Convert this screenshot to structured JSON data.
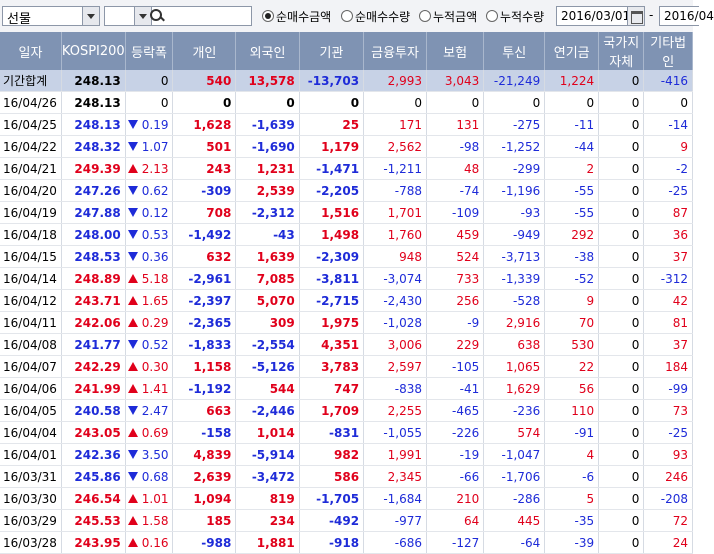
{
  "toolbar": {
    "market_select": "선물",
    "code_input": "",
    "radios": [
      {
        "label": "순매수금액",
        "selected": true
      },
      {
        "label": "순매수수량",
        "selected": false
      },
      {
        "label": "누적금액",
        "selected": false
      },
      {
        "label": "누적수량",
        "selected": false
      }
    ],
    "date_from": "2016/03/01",
    "date_sep": "-",
    "date_to": "2016/04"
  },
  "columns": [
    "일자",
    "KOSPI200",
    "등락폭",
    "개인",
    "외국인",
    "기관",
    "금융투자",
    "보험",
    "투신",
    "연기금",
    "국가지자체",
    "기타법인"
  ],
  "colors": {
    "up": "#e0001b",
    "down": "#1e2bd8",
    "header_bg": "#7f93b3",
    "total_bg": "#c7d2e6"
  },
  "rows": [
    {
      "date": "기간합계",
      "kospi": "248.13",
      "dir": "",
      "chg": "0",
      "vals": [
        "540",
        "13,578",
        "-13,703",
        "2,993",
        "3,043",
        "-21,249",
        "1,224",
        "0",
        "-416"
      ],
      "total": true
    },
    {
      "date": "16/04/26",
      "kospi": "248.13",
      "dir": "",
      "chg": "0",
      "vals": [
        "0",
        "0",
        "0",
        "0",
        "0",
        "0",
        "0",
        "0",
        "0"
      ]
    },
    {
      "date": "16/04/25",
      "kospi": "248.13",
      "dir": "dn",
      "chg": "0.19",
      "vals": [
        "1,628",
        "-1,639",
        "25",
        "171",
        "131",
        "-275",
        "-11",
        "0",
        "-14"
      ]
    },
    {
      "date": "16/04/22",
      "kospi": "248.32",
      "dir": "dn",
      "chg": "1.07",
      "vals": [
        "501",
        "-1,690",
        "1,179",
        "2,562",
        "-98",
        "-1,252",
        "-44",
        "0",
        "9"
      ]
    },
    {
      "date": "16/04/21",
      "kospi": "249.39",
      "dir": "up",
      "chg": "2.13",
      "vals": [
        "243",
        "1,231",
        "-1,471",
        "-1,211",
        "48",
        "-299",
        "2",
        "0",
        "-2"
      ]
    },
    {
      "date": "16/04/20",
      "kospi": "247.26",
      "dir": "dn",
      "chg": "0.62",
      "vals": [
        "-309",
        "2,539",
        "-2,205",
        "-788",
        "-74",
        "-1,196",
        "-55",
        "0",
        "-25"
      ]
    },
    {
      "date": "16/04/19",
      "kospi": "247.88",
      "dir": "dn",
      "chg": "0.12",
      "vals": [
        "708",
        "-2,312",
        "1,516",
        "1,701",
        "-109",
        "-93",
        "-55",
        "0",
        "87"
      ]
    },
    {
      "date": "16/04/18",
      "kospi": "248.00",
      "dir": "dn",
      "chg": "0.53",
      "vals": [
        "-1,492",
        "-43",
        "1,498",
        "1,760",
        "459",
        "-949",
        "292",
        "0",
        "36"
      ]
    },
    {
      "date": "16/04/15",
      "kospi": "248.53",
      "dir": "dn",
      "chg": "0.36",
      "vals": [
        "632",
        "1,639",
        "-2,309",
        "948",
        "524",
        "-3,713",
        "-38",
        "0",
        "37"
      ]
    },
    {
      "date": "16/04/14",
      "kospi": "248.89",
      "dir": "up",
      "chg": "5.18",
      "vals": [
        "-2,961",
        "7,085",
        "-3,811",
        "-3,074",
        "733",
        "-1,339",
        "-52",
        "0",
        "-312"
      ]
    },
    {
      "date": "16/04/12",
      "kospi": "243.71",
      "dir": "up",
      "chg": "1.65",
      "vals": [
        "-2,397",
        "5,070",
        "-2,715",
        "-2,430",
        "256",
        "-528",
        "9",
        "0",
        "42"
      ]
    },
    {
      "date": "16/04/11",
      "kospi": "242.06",
      "dir": "up",
      "chg": "0.29",
      "vals": [
        "-2,365",
        "309",
        "1,975",
        "-1,028",
        "-9",
        "2,916",
        "70",
        "0",
        "81"
      ]
    },
    {
      "date": "16/04/08",
      "kospi": "241.77",
      "dir": "dn",
      "chg": "0.52",
      "vals": [
        "-1,833",
        "-2,554",
        "4,351",
        "3,006",
        "229",
        "638",
        "530",
        "0",
        "37"
      ]
    },
    {
      "date": "16/04/07",
      "kospi": "242.29",
      "dir": "up",
      "chg": "0.30",
      "vals": [
        "1,158",
        "-5,126",
        "3,783",
        "2,597",
        "-105",
        "1,065",
        "22",
        "0",
        "184"
      ]
    },
    {
      "date": "16/04/06",
      "kospi": "241.99",
      "dir": "up",
      "chg": "1.41",
      "vals": [
        "-1,192",
        "544",
        "747",
        "-838",
        "-41",
        "1,629",
        "56",
        "0",
        "-99"
      ]
    },
    {
      "date": "16/04/05",
      "kospi": "240.58",
      "dir": "dn",
      "chg": "2.47",
      "vals": [
        "663",
        "-2,446",
        "1,709",
        "2,255",
        "-465",
        "-236",
        "110",
        "0",
        "73"
      ]
    },
    {
      "date": "16/04/04",
      "kospi": "243.05",
      "dir": "up",
      "chg": "0.69",
      "vals": [
        "-158",
        "1,014",
        "-831",
        "-1,055",
        "-226",
        "574",
        "-91",
        "0",
        "-25"
      ]
    },
    {
      "date": "16/04/01",
      "kospi": "242.36",
      "dir": "dn",
      "chg": "3.50",
      "vals": [
        "4,839",
        "-5,914",
        "982",
        "1,991",
        "-19",
        "-1,047",
        "4",
        "0",
        "93"
      ]
    },
    {
      "date": "16/03/31",
      "kospi": "245.86",
      "dir": "dn",
      "chg": "0.68",
      "vals": [
        "2,639",
        "-3,472",
        "586",
        "2,345",
        "-66",
        "-1,706",
        "-6",
        "0",
        "246"
      ]
    },
    {
      "date": "16/03/30",
      "kospi": "246.54",
      "dir": "up",
      "chg": "1.01",
      "vals": [
        "1,094",
        "819",
        "-1,705",
        "-1,684",
        "210",
        "-286",
        "5",
        "0",
        "-208"
      ]
    },
    {
      "date": "16/03/29",
      "kospi": "245.53",
      "dir": "up",
      "chg": "1.58",
      "vals": [
        "185",
        "234",
        "-492",
        "-977",
        "64",
        "445",
        "-35",
        "0",
        "72"
      ]
    },
    {
      "date": "16/03/28",
      "kospi": "243.95",
      "dir": "up",
      "chg": "0.16",
      "vals": [
        "-988",
        "1,881",
        "-918",
        "-686",
        "-127",
        "-64",
        "-39",
        "0",
        "24"
      ]
    }
  ]
}
